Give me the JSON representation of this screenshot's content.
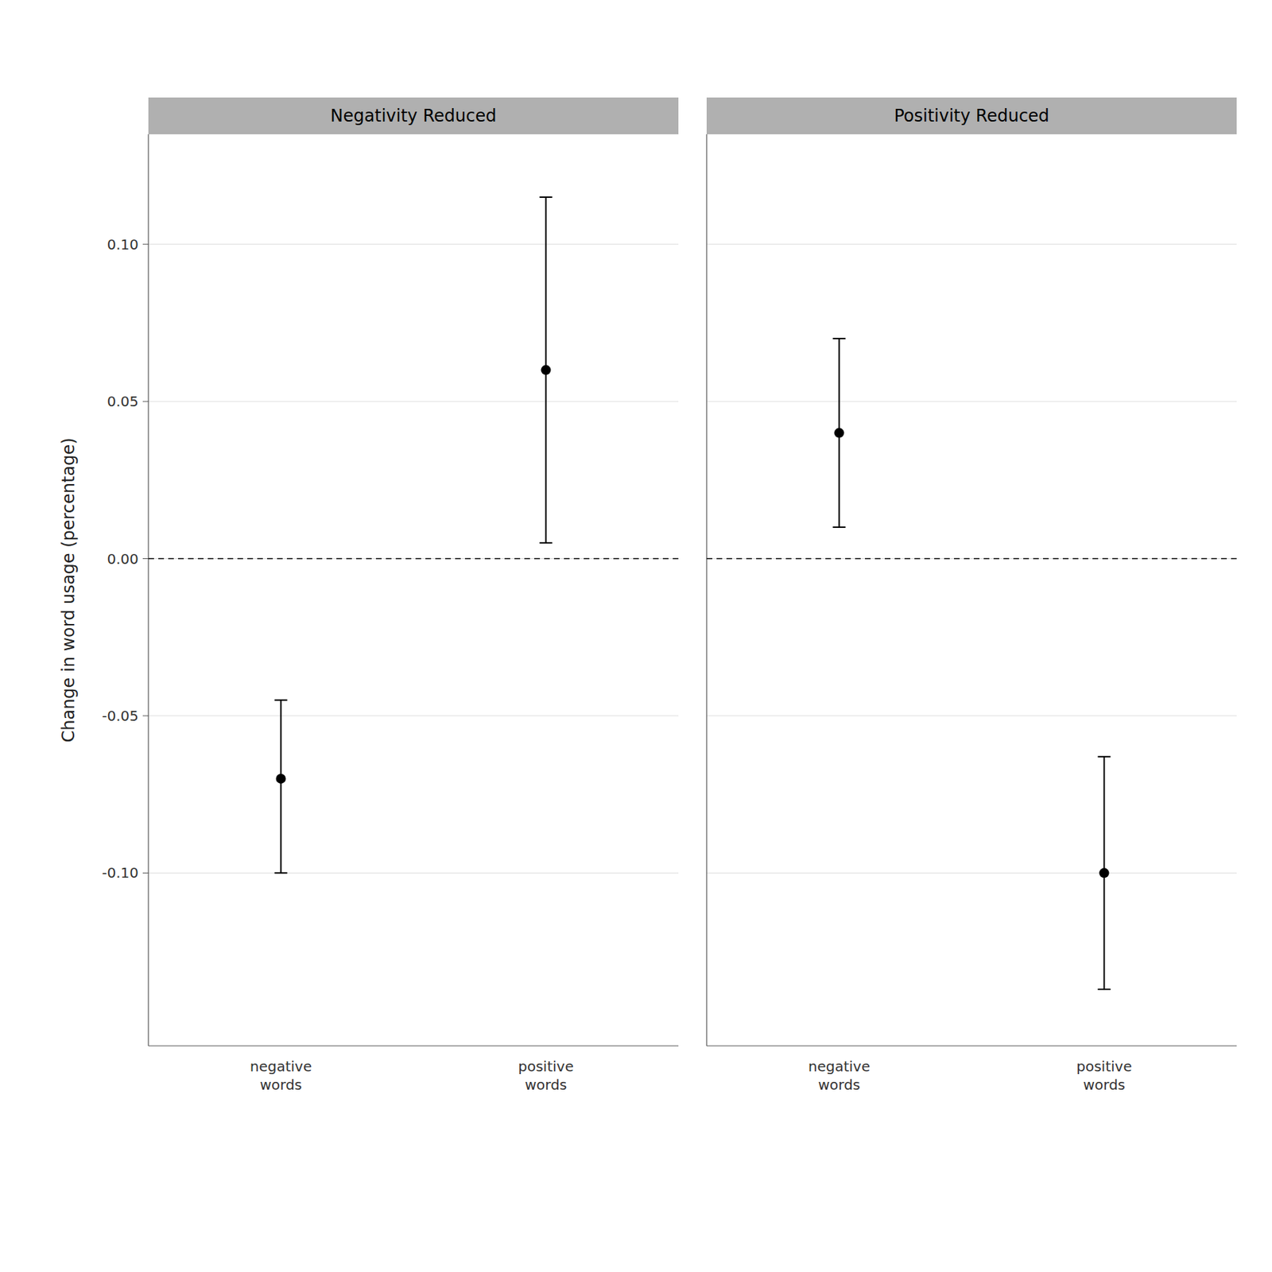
{
  "chart_data": [
    {
      "type": "errorbar",
      "title": "Negativity Reduced",
      "categories": [
        "negative\nwords",
        "positive\nwords"
      ],
      "values": [
        -0.07,
        0.06
      ],
      "lower": [
        -0.1,
        0.005
      ],
      "upper": [
        -0.045,
        0.115
      ],
      "ylabel": "Change in word usage (percentage)",
      "ylim": [
        -0.155,
        0.135
      ],
      "yticks": [
        {
          "value": -0.1,
          "label": "-0.10"
        },
        -0.05,
        {
          "value": 0,
          "label": "0.00"
        },
        0.05,
        {
          "value": 0.1,
          "label": "0.10"
        }
      ],
      "hline": 0.0,
      "grid": true,
      "color": "#000000",
      "marker": "circle"
    },
    {
      "type": "errorbar",
      "title": "Positivity Reduced",
      "categories": [
        "negative\nwords",
        "positive\nwords"
      ],
      "values": [
        0.04,
        -0.1
      ],
      "lower": [
        0.01,
        -0.137
      ],
      "upper": [
        0.07,
        -0.063
      ],
      "ylim": [
        -0.155,
        0.135
      ],
      "yticks": [
        {
          "value": -0.1,
          "label": "-0.10"
        },
        -0.05,
        {
          "value": 0,
          "label": "0.00"
        },
        0.05,
        {
          "value": 0.1,
          "label": "0.10"
        }
      ],
      "hline": 0.0,
      "grid": true,
      "tick_labels": "x",
      "color": "#000000",
      "marker": "circle"
    }
  ]
}
